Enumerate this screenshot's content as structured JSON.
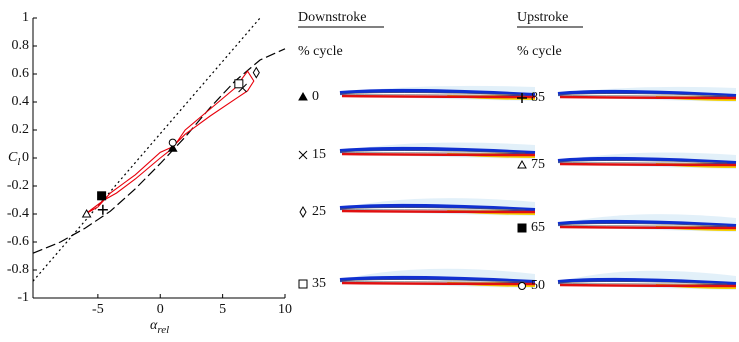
{
  "chart_data": {
    "type": "line",
    "xlabel": "α",
    "xlabel_sub": "rel",
    "ylabel": "C",
    "ylabel_sub": "l",
    "xlim": [
      -10.2,
      10
    ],
    "ylim": [
      -1,
      1
    ],
    "xticks": [
      -5,
      0,
      5,
      10
    ],
    "yticks": [
      -1,
      -0.8,
      -0.6,
      -0.4,
      -0.2,
      0,
      0.2,
      0.4,
      0.6,
      0.8,
      1
    ],
    "series": [
      {
        "style": "dotted",
        "color": "#000",
        "x": [
          -10.2,
          8
        ],
        "values": [
          -0.88,
          1.0
        ]
      },
      {
        "style": "dashed",
        "color": "#000",
        "x": [
          -10.2,
          -8,
          -6,
          -4,
          -2,
          0,
          2,
          4,
          6,
          8,
          10
        ],
        "values": [
          -0.68,
          -0.6,
          -0.5,
          -0.38,
          -0.22,
          -0.04,
          0.15,
          0.36,
          0.55,
          0.7,
          0.78
        ]
      },
      {
        "style": "solid",
        "color": "#e8000b",
        "x": [
          -6,
          -4.5,
          -3.5,
          -2,
          0,
          1,
          2,
          4,
          6,
          7,
          7.5,
          7,
          6,
          4,
          2,
          1,
          0,
          -2,
          -4,
          -5,
          -6
        ],
        "values": [
          -0.4,
          -0.3,
          -0.25,
          -0.15,
          0,
          0.07,
          0.2,
          0.35,
          0.5,
          0.62,
          0.55,
          0.48,
          0.42,
          0.3,
          0.17,
          0.08,
          0.04,
          -0.12,
          -0.25,
          -0.35,
          -0.4
        ]
      }
    ],
    "points": [
      {
        "marker": "triangle",
        "x": 1,
        "y": 0.07
      },
      {
        "marker": "cross",
        "x": 6.6,
        "y": 0.5
      },
      {
        "marker": "diamond",
        "x": 7.7,
        "y": 0.61
      },
      {
        "marker": "square",
        "x": 6.3,
        "y": 0.53
      },
      {
        "marker": "circle",
        "x": 1,
        "y": 0.11
      },
      {
        "marker": "square-filled",
        "x": -4.7,
        "y": -0.27
      },
      {
        "marker": "triangle-open",
        "x": -5.9,
        "y": -0.4
      },
      {
        "marker": "plus",
        "x": -4.6,
        "y": -0.37
      }
    ]
  },
  "flow_panels": [
    {
      "title": "Downstroke",
      "subtitle": "% cycle",
      "rows": [
        {
          "marker": "triangle",
          "label": "0"
        },
        {
          "marker": "cross",
          "label": "15"
        },
        {
          "marker": "diamond",
          "label": "25"
        },
        {
          "marker": "square",
          "label": "35"
        }
      ]
    },
    {
      "title": "Upstroke",
      "subtitle": "% cycle",
      "rows": [
        {
          "marker": "plus",
          "label": "85"
        },
        {
          "marker": "triangle-open",
          "label": "75"
        },
        {
          "marker": "square-filled",
          "label": "65"
        },
        {
          "marker": "circle",
          "label": "50"
        }
      ]
    }
  ]
}
